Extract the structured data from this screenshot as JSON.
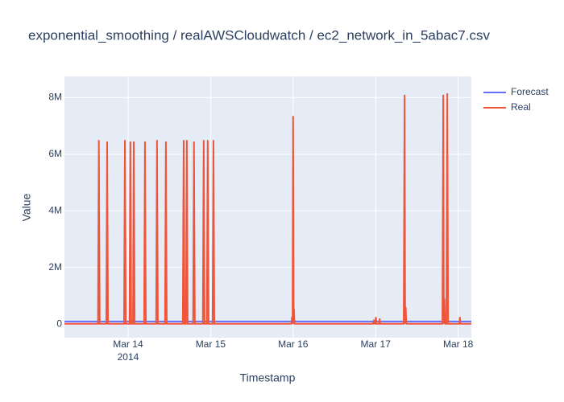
{
  "chart_data": {
    "type": "line",
    "title": "exponential_smoothing / realAWSCloudwatch / ec2_network_in_5abac7.csv",
    "x_label": "Timestamp",
    "y_label": "Value",
    "x_year": "2014",
    "xlim": [
      "2014-03-13T05:30",
      "2014-03-18T03:50"
    ],
    "xticks": [
      {
        "value": "2014-03-14T00:00",
        "label": "Mar 14"
      },
      {
        "value": "2014-03-15T00:00",
        "label": "Mar 15"
      },
      {
        "value": "2014-03-16T00:00",
        "label": "Mar 16"
      },
      {
        "value": "2014-03-17T00:00",
        "label": "Mar 17"
      },
      {
        "value": "2014-03-18T00:00",
        "label": "Mar 18"
      }
    ],
    "ylim": [
      -480000,
      8750000
    ],
    "yticks": [
      0,
      {
        "value": 2000000,
        "label": "2M"
      },
      {
        "value": 4000000,
        "label": "4M"
      },
      {
        "value": 6000000,
        "label": "6M"
      },
      {
        "value": 8000000,
        "label": "8M"
      }
    ],
    "grid": true,
    "legend": "top-right",
    "series": [
      {
        "name": "Forecast",
        "color": "#636efa",
        "x": [
          "2014-03-13T05:30",
          "2014-03-18T03:50"
        ],
        "values": [
          90000,
          90000
        ]
      },
      {
        "name": "Real",
        "color": "#ef553b",
        "x": [
          "2014-03-13T05:30",
          "2014-03-13T15:15",
          "2014-03-13T15:30",
          "2014-03-13T15:45",
          "2014-03-13T17:40",
          "2014-03-13T17:55",
          "2014-03-13T18:10",
          "2014-03-13T22:50",
          "2014-03-13T23:05",
          "2014-03-13T23:20",
          "2014-03-14T00:25",
          "2014-03-14T00:40",
          "2014-03-14T00:55",
          "2014-03-14T01:25",
          "2014-03-14T01:40",
          "2014-03-14T01:55",
          "2014-03-14T04:40",
          "2014-03-14T04:55",
          "2014-03-14T05:10",
          "2014-03-14T08:10",
          "2014-03-14T08:25",
          "2014-03-14T08:40",
          "2014-03-14T10:45",
          "2014-03-14T11:00",
          "2014-03-14T11:15",
          "2014-03-14T15:55",
          "2014-03-14T16:10",
          "2014-03-14T16:25",
          "2014-03-14T16:50",
          "2014-03-14T17:05",
          "2014-03-14T17:20",
          "2014-03-14T18:55",
          "2014-03-14T19:10",
          "2014-03-14T19:25",
          "2014-03-14T21:45",
          "2014-03-14T22:00",
          "2014-03-14T22:15",
          "2014-03-14T22:55",
          "2014-03-14T23:10",
          "2014-03-14T23:25",
          "2014-03-15T00:35",
          "2014-03-15T00:50",
          "2014-03-15T01:05",
          "2014-03-15T23:30",
          "2014-03-15T23:40",
          "2014-03-15T23:50",
          "2014-03-16T00:00",
          "2014-03-16T00:10",
          "2014-03-16T00:15",
          "2014-03-16T00:25",
          "2014-03-16T23:15",
          "2014-03-16T23:30",
          "2014-03-16T23:45",
          "2014-03-16T23:55",
          "2014-03-17T00:05",
          "2014-03-17T00:15",
          "2014-03-17T01:00",
          "2014-03-17T01:10",
          "2014-03-17T01:20",
          "2014-03-17T08:10",
          "2014-03-17T08:25",
          "2014-03-17T08:35",
          "2014-03-17T08:45",
          "2014-03-17T08:55",
          "2014-03-17T19:25",
          "2014-03-17T19:40",
          "2014-03-17T19:50",
          "2014-03-17T20:00",
          "2014-03-17T20:10",
          "2014-03-17T20:35",
          "2014-03-17T20:50",
          "2014-03-17T21:05",
          "2014-03-18T00:20",
          "2014-03-18T00:30",
          "2014-03-18T00:40",
          "2014-03-18T03:50"
        ],
        "values": [
          10000,
          10000,
          6500000,
          10000,
          10000,
          6450000,
          10000,
          10000,
          6500000,
          10000,
          10000,
          6450000,
          10000,
          10000,
          6450000,
          10000,
          10000,
          6450000,
          10000,
          10000,
          6500000,
          10000,
          10000,
          6450000,
          10000,
          10000,
          6500000,
          10000,
          10000,
          6500000,
          10000,
          10000,
          6450000,
          10000,
          10000,
          6500000,
          10000,
          10000,
          6500000,
          10000,
          10000,
          6500000,
          10000,
          10000,
          250000,
          10000,
          7350000,
          10000,
          550000,
          10000,
          10000,
          150000,
          10000,
          10000,
          250000,
          10000,
          10000,
          200000,
          10000,
          10000,
          8100000,
          10000,
          600000,
          10000,
          10000,
          8100000,
          10000,
          900000,
          10000,
          10000,
          8150000,
          10000,
          10000,
          250000,
          10000,
          10000
        ]
      }
    ]
  }
}
